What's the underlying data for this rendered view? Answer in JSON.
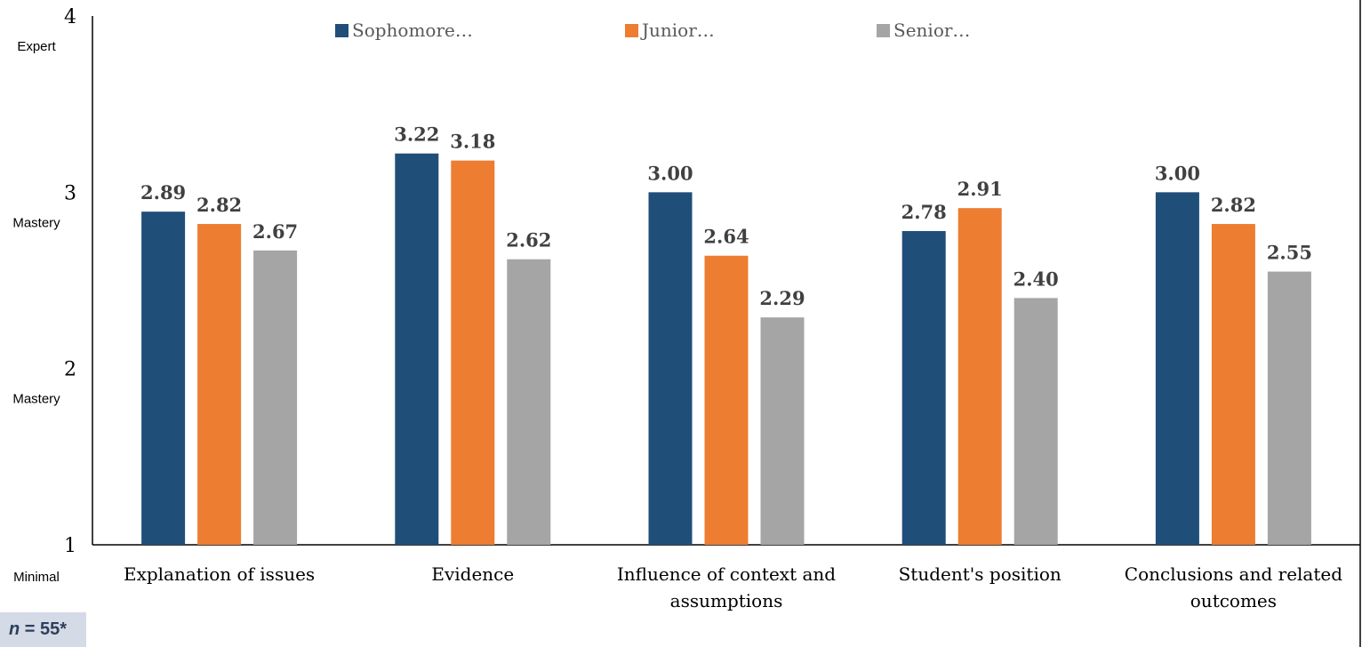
{
  "chart_data": {
    "type": "bar",
    "categories": [
      [
        "Explanation of issues"
      ],
      [
        "Evidence"
      ],
      [
        "Influence of context and",
        "assumptions"
      ],
      [
        "Student's position"
      ],
      [
        "Conclusions and related",
        "outcomes"
      ]
    ],
    "series": [
      {
        "name": "Sophomore…",
        "color": "#1f4e79",
        "values": [
          2.89,
          3.22,
          3.0,
          2.78,
          3.0
        ],
        "labels": [
          "2.89",
          "3.22",
          "3.00",
          "2.78",
          "3.00"
        ]
      },
      {
        "name": "Junior…",
        "color": "#ed7d31",
        "values": [
          2.82,
          3.18,
          2.64,
          2.91,
          2.82
        ],
        "labels": [
          "2.82",
          "3.18",
          "2.64",
          "2.91",
          "2.82"
        ]
      },
      {
        "name": "Senior…",
        "color": "#a5a5a5",
        "values": [
          2.67,
          2.62,
          2.29,
          2.4,
          2.55
        ],
        "labels": [
          "2.67",
          "2.62",
          "2.29",
          "2.40",
          "2.55"
        ]
      }
    ],
    "ylim": [
      1,
      4
    ],
    "yticks": [
      {
        "value": 1,
        "label": "1",
        "word": "Minimal"
      },
      {
        "value": 2,
        "label": "2",
        "word": "Mastery"
      },
      {
        "value": 3,
        "label": "3",
        "word": "Mastery"
      },
      {
        "value": 4,
        "label": "4",
        "word": "Expert"
      }
    ],
    "legend_position": "top",
    "grid": false
  },
  "note": {
    "variable": "n",
    "text": " = 55*"
  }
}
